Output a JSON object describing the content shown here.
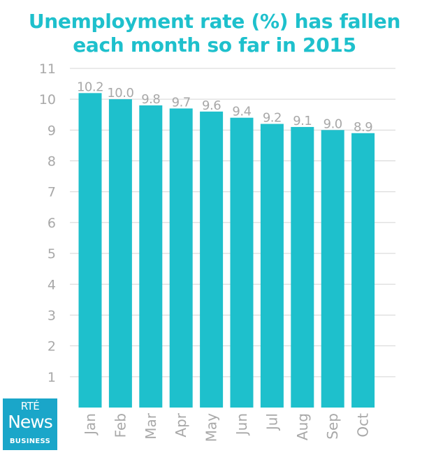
{
  "title": {
    "line1": "Unemployment rate (%) has fallen",
    "line2": "each month so far in 2015"
  },
  "logo": {
    "brand": "RTÉ",
    "product": "News",
    "section": "BUSINESS"
  },
  "colors": {
    "accent": "#1ec0cc",
    "bar": "#1ec0cc",
    "label": "#a8a8a8",
    "grid": "#d4d4d4",
    "logo_bg": "#1aa6c9"
  },
  "chart_data": {
    "type": "bar",
    "title": "Unemployment rate (%) has fallen each month so far in 2015",
    "categories": [
      "Jan",
      "Feb",
      "Mar",
      "Apr",
      "May",
      "Jun",
      "Jul",
      "Aug",
      "Sep",
      "Oct"
    ],
    "values": [
      10.2,
      10.0,
      9.8,
      9.7,
      9.6,
      9.4,
      9.2,
      9.1,
      9.0,
      8.9
    ],
    "value_labels": [
      "10.2",
      "10.0",
      "9.8",
      "9.7",
      "9.6",
      "9.4",
      "9.2",
      "9.1",
      "9.0",
      "8.9"
    ],
    "yticks": [
      1,
      2,
      3,
      4,
      5,
      6,
      7,
      8,
      9,
      10,
      11
    ],
    "ylim": [
      0,
      11
    ],
    "grid": true,
    "xlabel": "",
    "ylabel": ""
  }
}
